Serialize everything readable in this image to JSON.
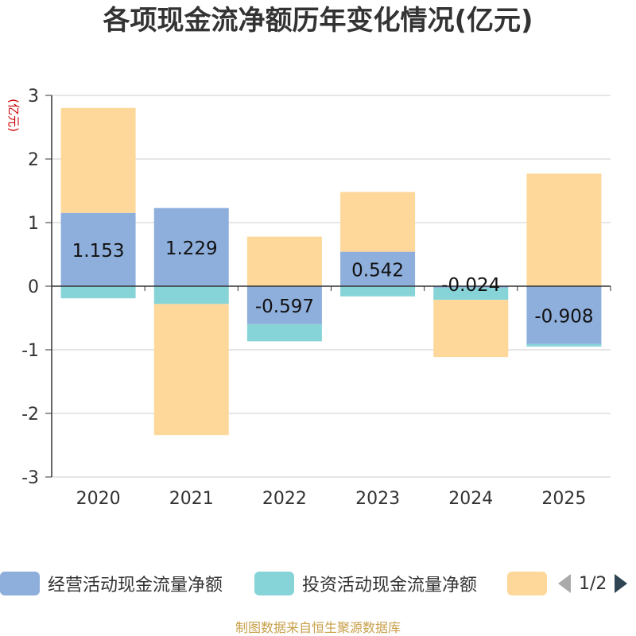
{
  "chart_data": {
    "type": "bar",
    "stacked": true,
    "title": "各项现金流净额历年变化情况(亿元)",
    "ylabel": "(亿元)",
    "categories": [
      "2020",
      "2021",
      "2022",
      "2023",
      "2024",
      "2025"
    ],
    "ylim": [
      -3,
      3
    ],
    "yticks": [
      -3,
      -2,
      -1,
      0,
      1,
      2,
      3
    ],
    "grid": true,
    "series": [
      {
        "name": "经营活动现金流量净额",
        "color": "#8eaedb",
        "values": [
          1.153,
          1.229,
          -0.597,
          0.542,
          -0.024,
          -0.908
        ]
      },
      {
        "name": "投资活动现金流量净额",
        "color": "#87d4d8",
        "values": [
          -0.19,
          -0.28,
          -0.27,
          -0.16,
          -0.19,
          -0.04
        ]
      },
      {
        "name": "",
        "color": "#fed89a",
        "values": [
          1.65,
          -2.06,
          0.78,
          0.94,
          -0.9,
          1.77
        ]
      }
    ],
    "data_labels": [
      "1.153",
      "1.229",
      "-0.597",
      "0.542",
      "-0.024",
      "-0.908"
    ]
  },
  "legend": {
    "pager_text": "1/2"
  },
  "footer": "制图数据来自恒生聚源数据库"
}
